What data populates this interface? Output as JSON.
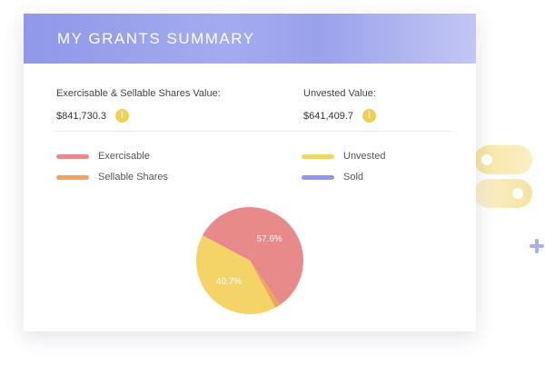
{
  "card": {
    "title": "MY GRANTS SUMMARY"
  },
  "values": {
    "exercisable": {
      "label": "Exercisable & Sellable Shares Value:",
      "amount": "$841,730.3"
    },
    "unvested": {
      "label": "Unvested Value:",
      "amount": "$641,409.7"
    },
    "info_icon": "i"
  },
  "legend": [
    {
      "label": "Exercisable",
      "color": "#e88a8a"
    },
    {
      "label": "Unvested",
      "color": "#f4d466"
    },
    {
      "label": "Sellable Shares",
      "color": "#f0a55e"
    },
    {
      "label": "Sold",
      "color": "#8f98e8"
    }
  ],
  "chart_data": {
    "type": "pie",
    "slices": [
      {
        "name": "Exercisable",
        "value": 57.6,
        "label": "57.6%",
        "color": "#e88a8a"
      },
      {
        "name": "Sellable Shares",
        "value": 1.7,
        "label": "",
        "color": "#f0a55e"
      },
      {
        "name": "Unvested",
        "value": 40.7,
        "label": "40.7%",
        "color": "#f4d466"
      }
    ]
  }
}
